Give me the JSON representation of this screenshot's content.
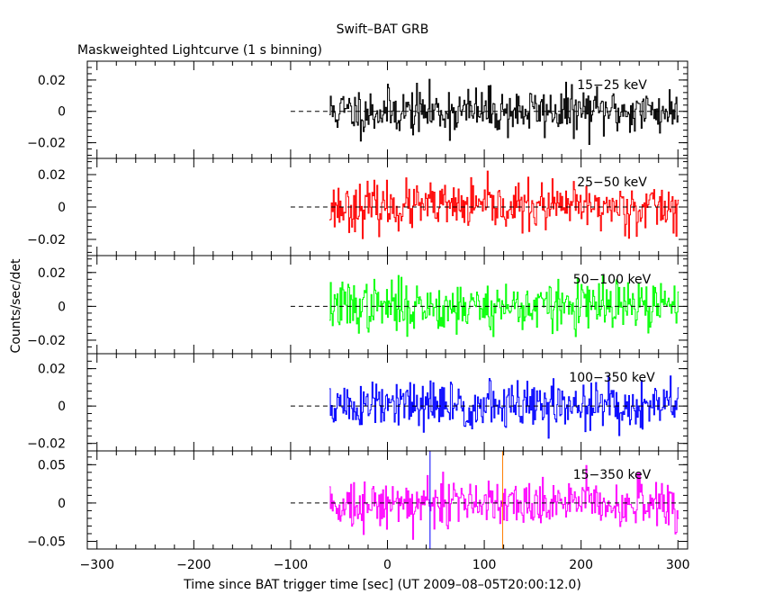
{
  "chart_data": {
    "type": "line",
    "title": "Swift–BAT GRB",
    "subtitle": "Maskweighted Lightcurve (1 s binning)",
    "xlabel": "Time since BAT trigger time [sec] (UT 2009–08–05T20:00:12.0)",
    "ylabel": "Counts/sec/det",
    "xlim": [
      -310,
      310
    ],
    "xticks": [
      -300,
      -200,
      -100,
      0,
      100,
      200,
      300
    ],
    "xtick_labels": [
      "−300",
      "−200",
      "−100",
      "0",
      "100",
      "200",
      "300"
    ],
    "data_range": [
      -60,
      300
    ],
    "pre_data_dashed_range": [
      -100,
      -60
    ],
    "markers": [
      {
        "x": 44,
        "color": "#0000ff"
      },
      {
        "x": 119,
        "color": "#ff8000"
      }
    ],
    "panels": [
      {
        "band": "15−25 keV",
        "color": "#000000",
        "ylim": [
          -0.03,
          0.032
        ],
        "yticks": [
          -0.02,
          0,
          0.02
        ],
        "ytick_labels": [
          "−0.02",
          "0",
          "0.02"
        ],
        "noise_sigma": 0.0075,
        "seed": 11
      },
      {
        "band": "25−50 keV",
        "color": "#ff0000",
        "ylim": [
          -0.03,
          0.03
        ],
        "yticks": [
          -0.02,
          0,
          0.02
        ],
        "ytick_labels": [
          "−0.02",
          "0",
          "0.02"
        ],
        "noise_sigma": 0.0072,
        "seed": 23
      },
      {
        "band": "50−100 keV",
        "color": "#00ff00",
        "ylim": [
          -0.028,
          0.03
        ],
        "yticks": [
          -0.02,
          0,
          0.02
        ],
        "ytick_labels": [
          "−0.02",
          "0",
          "0.02"
        ],
        "noise_sigma": 0.0075,
        "seed": 37
      },
      {
        "band": "100−350 keV",
        "color": "#0000ff",
        "ylim": [
          -0.024,
          0.028
        ],
        "yticks": [
          -0.02,
          0,
          0.02
        ],
        "ytick_labels": [
          "−0.02",
          "0",
          "0.02"
        ],
        "noise_sigma": 0.0068,
        "seed": 51
      },
      {
        "band": "15−350 keV",
        "color": "#ff00ff",
        "ylim": [
          -0.06,
          0.068
        ],
        "yticks": [
          -0.05,
          0,
          0.05
        ],
        "ytick_labels": [
          "−0.05",
          "0",
          "0.05"
        ],
        "noise_sigma": 0.016,
        "seed": 73
      }
    ]
  }
}
